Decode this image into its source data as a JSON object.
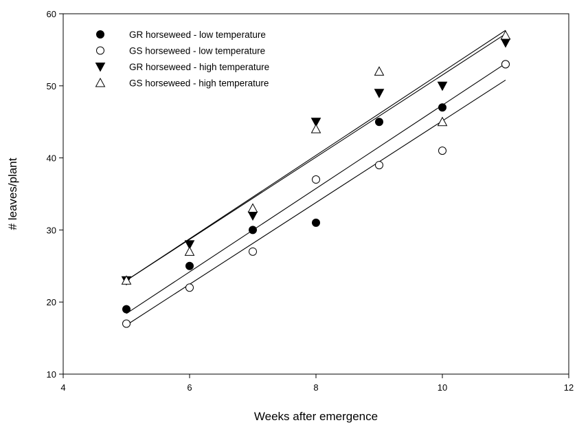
{
  "chart_data": {
    "type": "scatter",
    "title": "",
    "xlabel": "Weeks after emergence",
    "ylabel": "# leaves/plant",
    "xlim": [
      4,
      12
    ],
    "ylim": [
      10,
      60
    ],
    "x_ticks": [
      "4",
      "6",
      "8",
      "10",
      "12"
    ],
    "y_ticks": [
      "10",
      "20",
      "30",
      "40",
      "50",
      "60"
    ],
    "grid": false,
    "legend_position": "top-left",
    "series": [
      {
        "name": "GR horseweed - low temperature",
        "marker": "filled-circle",
        "x": [
          5,
          6,
          7,
          8,
          9,
          10,
          11
        ],
        "y": [
          19,
          25,
          30,
          31,
          45,
          47,
          53
        ],
        "fit": {
          "x": [
            5,
            11
          ],
          "y": [
            18.4,
            53.1
          ]
        }
      },
      {
        "name": "GS horseweed - low temperature",
        "marker": "open-circle",
        "x": [
          5,
          6,
          7,
          8,
          9,
          10,
          11
        ],
        "y": [
          17,
          22,
          27,
          37,
          39,
          41,
          53
        ],
        "fit": {
          "x": [
            5,
            11
          ],
          "y": [
            16.8,
            50.8
          ]
        }
      },
      {
        "name": "GR horseweed - high temperature",
        "marker": "filled-triangle-down",
        "x": [
          5,
          6,
          7,
          8,
          9,
          10,
          11
        ],
        "y": [
          23,
          28,
          32,
          45,
          49,
          50,
          56
        ],
        "fit": {
          "x": [
            5,
            11
          ],
          "y": [
            23.0,
            57.2
          ]
        }
      },
      {
        "name": "GS horseweed - high temperature",
        "marker": "open-triangle-up",
        "x": [
          5,
          6,
          7,
          8,
          9,
          10,
          11
        ],
        "y": [
          23,
          27,
          33,
          44,
          52,
          45,
          57
        ],
        "fit": {
          "x": [
            5,
            11
          ],
          "y": [
            23.0,
            57.7
          ]
        }
      }
    ]
  }
}
